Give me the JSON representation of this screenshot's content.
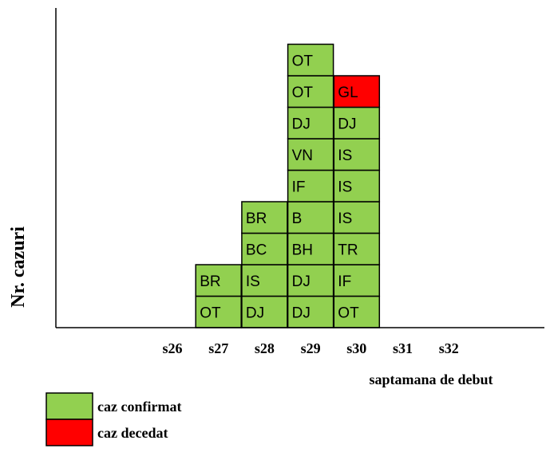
{
  "chart_data": {
    "type": "bar",
    "title": "",
    "xlabel": "saptamana de debut",
    "ylabel": "Nr. cazuri",
    "categories": [
      "s26",
      "s27",
      "s28",
      "s29",
      "s30",
      "s31",
      "s32"
    ],
    "stacks": [
      {
        "category": "s26",
        "cases": []
      },
      {
        "category": "s27",
        "cases": [
          {
            "label": "OT",
            "status": "confirmed"
          },
          {
            "label": "BR",
            "status": "confirmed"
          }
        ]
      },
      {
        "category": "s28",
        "cases": [
          {
            "label": "DJ",
            "status": "confirmed"
          },
          {
            "label": "IS",
            "status": "confirmed"
          },
          {
            "label": "BC",
            "status": "confirmed"
          },
          {
            "label": "BR",
            "status": "confirmed"
          }
        ]
      },
      {
        "category": "s29",
        "cases": [
          {
            "label": "DJ",
            "status": "confirmed"
          },
          {
            "label": "DJ",
            "status": "confirmed"
          },
          {
            "label": "BH",
            "status": "confirmed"
          },
          {
            "label": "B",
            "status": "confirmed"
          },
          {
            "label": "IF",
            "status": "confirmed"
          },
          {
            "label": "VN",
            "status": "confirmed"
          },
          {
            "label": "DJ",
            "status": "confirmed"
          },
          {
            "label": "OT",
            "status": "confirmed"
          },
          {
            "label": "OT",
            "status": "confirmed"
          }
        ]
      },
      {
        "category": "s30",
        "cases": [
          {
            "label": "OT",
            "status": "confirmed"
          },
          {
            "label": "IF",
            "status": "confirmed"
          },
          {
            "label": "TR",
            "status": "confirmed"
          },
          {
            "label": "IS",
            "status": "confirmed"
          },
          {
            "label": "IS",
            "status": "confirmed"
          },
          {
            "label": "IS",
            "status": "confirmed"
          },
          {
            "label": "DJ",
            "status": "confirmed"
          },
          {
            "label": "GL",
            "status": "deceased"
          }
        ]
      },
      {
        "category": "s31",
        "cases": []
      },
      {
        "category": "s32",
        "cases": []
      }
    ],
    "series": [
      {
        "name": "caz confirmat",
        "status": "confirmed",
        "color": "#92d050"
      },
      {
        "name": "caz decedat",
        "status": "deceased",
        "color": "#ff0000"
      }
    ],
    "ylim": [
      0,
      9
    ],
    "grid": false,
    "legend_position": "bottom-left"
  }
}
